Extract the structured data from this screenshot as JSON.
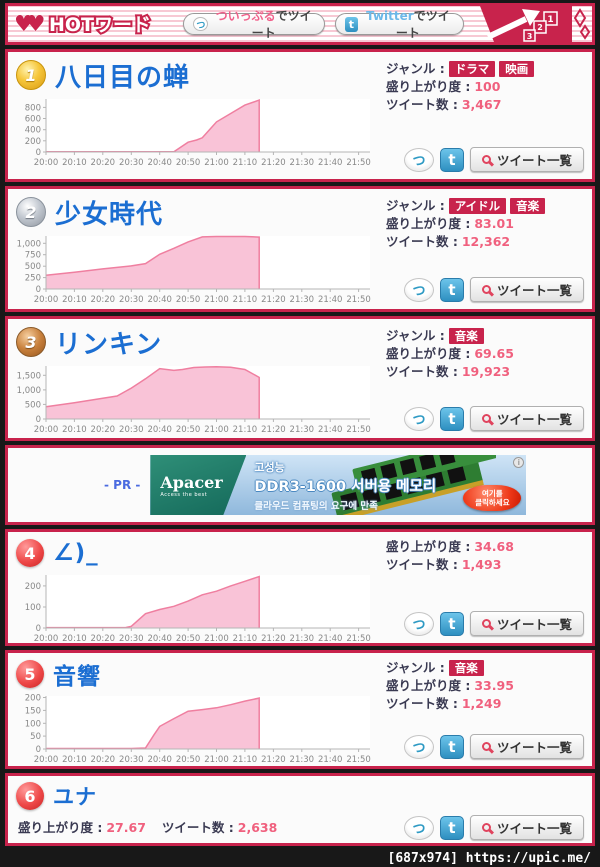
{
  "page": {
    "watermark": "[687x974] https://upic.me/"
  },
  "colors": {
    "accent_crimson": "#c8234c",
    "value_pink": "#f0607e",
    "title_blue": "#1b6ed2",
    "chart_fill": "#f9c3d7",
    "chart_line": "#ef7fa0",
    "twitter_blue": "#2e8fc0"
  },
  "icons": {
    "twipple_char": "つ",
    "twitter_char": "t",
    "info_char": "i"
  },
  "header": {
    "logo_text": "HOTワード",
    "hearts": "♥♥",
    "twipple_brand": "ついっぷる",
    "twitter_brand": "Twitter",
    "tweet_suffix": "でツイート",
    "podium": [
      "1",
      "2",
      "3"
    ]
  },
  "labels": {
    "genre": "ジャンル :",
    "score": "盛り上がり度 :",
    "tweets": "ツイート数 :",
    "tweet_list": "ツイート一覧"
  },
  "items": [
    {
      "rank": "1",
      "medal": "gold",
      "title": "八日目の蝉",
      "genres": [
        "ドラマ",
        "映画"
      ],
      "score": "100",
      "tweets": "3,467"
    },
    {
      "rank": "2",
      "medal": "silver",
      "title": "少女時代",
      "genres": [
        "アイドル",
        "音楽"
      ],
      "score": "83.01",
      "tweets": "12,362"
    },
    {
      "rank": "3",
      "medal": "bronze",
      "title": "リンキン",
      "genres": [
        "音楽"
      ],
      "score": "69.65",
      "tweets": "19,923"
    },
    {
      "rank": "4",
      "medal": "none",
      "title": "∠)_",
      "genres": [],
      "score": "34.68",
      "tweets": "1,493"
    },
    {
      "rank": "5",
      "medal": "none",
      "title": "音響",
      "genres": [
        "音楽"
      ],
      "score": "33.95",
      "tweets": "1,249"
    },
    {
      "rank": "6",
      "medal": "none",
      "title": "ユナ",
      "genres": [],
      "score": "27.67",
      "tweets": "2,638"
    }
  ],
  "ad": {
    "pr_label": "- PR -",
    "brand": "Apacer",
    "brand_sub": "Access the best",
    "line1": "고성능",
    "line2": "DDR3-1600 서버용 메모리",
    "line3": "클라우드 컴퓨팅의 요구에 만족",
    "cta_line1": "여기를",
    "cta_line2": "클릭하세요"
  },
  "chart_data": [
    {
      "type": "area",
      "item": "八日目の蝉",
      "x_ticks": [
        "20:00",
        "20:10",
        "20:20",
        "20:30",
        "20:40",
        "20:50",
        "21:00",
        "21:10",
        "21:20",
        "21:30",
        "21:40",
        "21:50"
      ],
      "x_tick_minutes": [
        0,
        10,
        20,
        30,
        40,
        50,
        60,
        70,
        80,
        90,
        100,
        110
      ],
      "x_max_minutes": 114,
      "y_ticks": [
        0,
        200,
        400,
        600,
        800
      ],
      "y_tick_labels": [
        "0",
        "200",
        "400",
        "600",
        "800"
      ],
      "ylim": [
        0,
        950
      ],
      "points": [
        [
          0,
          3
        ],
        [
          10,
          3
        ],
        [
          20,
          3
        ],
        [
          30,
          3
        ],
        [
          40,
          3
        ],
        [
          45,
          6
        ],
        [
          50,
          175
        ],
        [
          53,
          215
        ],
        [
          55,
          255
        ],
        [
          60,
          540
        ],
        [
          65,
          690
        ],
        [
          70,
          840
        ],
        [
          75,
          930
        ]
      ]
    },
    {
      "type": "area",
      "item": "少女時代",
      "x_ticks": [
        "20:00",
        "20:10",
        "20:20",
        "20:30",
        "20:40",
        "20:50",
        "21:00",
        "21:10",
        "21:20",
        "21:30",
        "21:40",
        "21:50"
      ],
      "x_tick_minutes": [
        0,
        10,
        20,
        30,
        40,
        50,
        60,
        70,
        80,
        90,
        100,
        110
      ],
      "x_max_minutes": 114,
      "y_ticks": [
        0,
        250,
        500,
        750,
        1000
      ],
      "y_tick_labels": [
        "0",
        "250",
        "500",
        "750",
        "1,000"
      ],
      "ylim": [
        0,
        1160
      ],
      "points": [
        [
          0,
          300
        ],
        [
          10,
          365
        ],
        [
          20,
          440
        ],
        [
          30,
          505
        ],
        [
          35,
          555
        ],
        [
          40,
          760
        ],
        [
          45,
          890
        ],
        [
          50,
          1030
        ],
        [
          55,
          1140
        ],
        [
          60,
          1150
        ],
        [
          65,
          1150
        ],
        [
          70,
          1150
        ],
        [
          75,
          1135
        ]
      ]
    },
    {
      "type": "area",
      "item": "リンキン",
      "x_ticks": [
        "20:00",
        "20:10",
        "20:20",
        "20:30",
        "20:40",
        "20:50",
        "21:00",
        "21:10",
        "21:20",
        "21:30",
        "21:40",
        "21:50"
      ],
      "x_tick_minutes": [
        0,
        10,
        20,
        30,
        40,
        50,
        60,
        70,
        80,
        90,
        100,
        110
      ],
      "x_max_minutes": 114,
      "y_ticks": [
        0,
        500,
        1000,
        1500
      ],
      "y_tick_labels": [
        "0",
        "500",
        "1,000",
        "1,500"
      ],
      "ylim": [
        0,
        1820
      ],
      "points": [
        [
          0,
          420
        ],
        [
          10,
          560
        ],
        [
          20,
          710
        ],
        [
          25,
          790
        ],
        [
          30,
          1060
        ],
        [
          35,
          1380
        ],
        [
          40,
          1730
        ],
        [
          45,
          1670
        ],
        [
          48,
          1700
        ],
        [
          52,
          1770
        ],
        [
          56,
          1785
        ],
        [
          60,
          1795
        ],
        [
          65,
          1775
        ],
        [
          70,
          1700
        ],
        [
          75,
          1430
        ]
      ]
    },
    {
      "type": "area",
      "item": "∠)_",
      "x_ticks": [
        "20:00",
        "20:10",
        "20:20",
        "20:30",
        "20:40",
        "20:50",
        "21:00",
        "21:10",
        "21:20",
        "21:30",
        "21:40",
        "21:50"
      ],
      "x_tick_minutes": [
        0,
        10,
        20,
        30,
        40,
        50,
        60,
        70,
        80,
        90,
        100,
        110
      ],
      "x_max_minutes": 114,
      "y_ticks": [
        0,
        100,
        200
      ],
      "y_tick_labels": [
        "0",
        "100",
        "200"
      ],
      "ylim": [
        0,
        252
      ],
      "points": [
        [
          0,
          2
        ],
        [
          10,
          2
        ],
        [
          20,
          2
        ],
        [
          28,
          2
        ],
        [
          30,
          8
        ],
        [
          35,
          68
        ],
        [
          40,
          88
        ],
        [
          45,
          103
        ],
        [
          50,
          128
        ],
        [
          55,
          158
        ],
        [
          60,
          175
        ],
        [
          65,
          200
        ],
        [
          70,
          222
        ],
        [
          75,
          245
        ]
      ]
    },
    {
      "type": "area",
      "item": "音響",
      "x_ticks": [
        "20:00",
        "20:10",
        "20:20",
        "20:30",
        "20:40",
        "20:50",
        "21:00",
        "21:10",
        "21:20",
        "21:30",
        "21:40",
        "21:50"
      ],
      "x_tick_minutes": [
        0,
        10,
        20,
        30,
        40,
        50,
        60,
        70,
        80,
        90,
        100,
        110
      ],
      "x_max_minutes": 114,
      "y_ticks": [
        0,
        50,
        100,
        150,
        200
      ],
      "y_tick_labels": [
        "0",
        "50",
        "100",
        "150",
        "200"
      ],
      "ylim": [
        0,
        206
      ],
      "points": [
        [
          0,
          2
        ],
        [
          10,
          2
        ],
        [
          20,
          2
        ],
        [
          30,
          2
        ],
        [
          35,
          4
        ],
        [
          38,
          55
        ],
        [
          40,
          88
        ],
        [
          45,
          118
        ],
        [
          50,
          147
        ],
        [
          55,
          153
        ],
        [
          60,
          160
        ],
        [
          65,
          172
        ],
        [
          70,
          186
        ],
        [
          75,
          198
        ]
      ]
    }
  ]
}
